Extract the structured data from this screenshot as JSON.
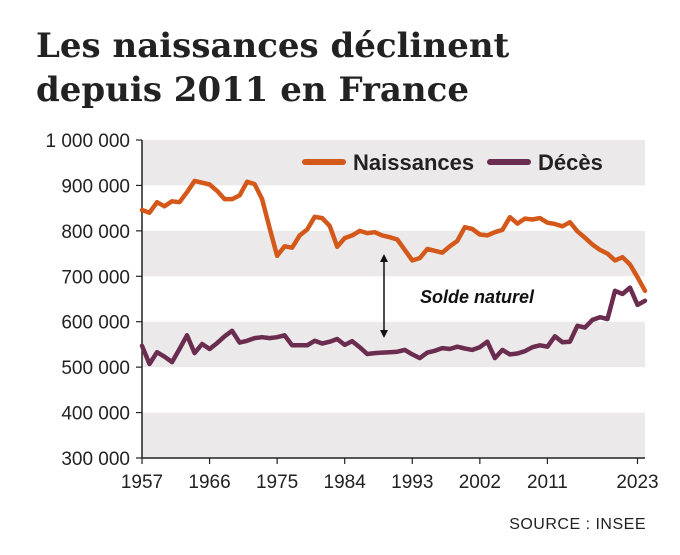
{
  "header": {
    "title_line1": "Les naissances déclinent",
    "title_line2": "depuis 2011 en France"
  },
  "source": "SOURCE : INSEE",
  "colors": {
    "naissances": "#d4581a",
    "deces": "#6b2d4f",
    "band": "#ece9ea",
    "axis": "#222222"
  },
  "chart_data": {
    "type": "line",
    "title": "Les naissances déclinent depuis 2011 en France",
    "xlabel": "",
    "ylabel": "",
    "xlim": [
      1957,
      2024
    ],
    "ylim": [
      300000,
      1000000
    ],
    "y_ticks": [
      300000,
      400000,
      500000,
      600000,
      700000,
      800000,
      900000,
      1000000
    ],
    "y_tick_labels": [
      "300 000",
      "400 000",
      "500 000",
      "600 000",
      "700 000",
      "800 000",
      "900 000",
      "1 000 000"
    ],
    "x_ticks": [
      1957,
      1966,
      1975,
      1984,
      1993,
      2002,
      2011,
      2023
    ],
    "x_tick_labels": [
      "1957",
      "1966",
      "1975",
      "1984",
      "1993",
      "2002",
      "2011",
      "2023"
    ],
    "grid": "alternating horizontal bands",
    "legend": {
      "placement": "top-right",
      "entries": [
        "Naissances",
        "Décès"
      ]
    },
    "annotation": "Solde naturel",
    "x": [
      1957,
      1958,
      1959,
      1960,
      1961,
      1962,
      1963,
      1964,
      1965,
      1966,
      1967,
      1968,
      1969,
      1970,
      1971,
      1972,
      1973,
      1974,
      1975,
      1976,
      1977,
      1978,
      1979,
      1980,
      1981,
      1982,
      1983,
      1984,
      1985,
      1986,
      1987,
      1988,
      1989,
      1990,
      1991,
      1992,
      1993,
      1994,
      1995,
      1996,
      1997,
      1998,
      1999,
      2000,
      2001,
      2002,
      2003,
      2004,
      2005,
      2006,
      2007,
      2008,
      2009,
      2010,
      2011,
      2012,
      2013,
      2014,
      2015,
      2016,
      2017,
      2018,
      2019,
      2020,
      2021,
      2022,
      2023,
      2024
    ],
    "series": [
      {
        "name": "Naissances",
        "values": [
          846000,
          840000,
          863000,
          854000,
          865000,
          863000,
          885000,
          910000,
          906000,
          902000,
          888000,
          870000,
          870000,
          878000,
          908000,
          903000,
          870000,
          806000,
          745000,
          766000,
          763000,
          790000,
          803000,
          831000,
          828000,
          811000,
          765000,
          784000,
          790000,
          800000,
          795000,
          797000,
          790000,
          786000,
          781000,
          758000,
          735000,
          740000,
          760000,
          756000,
          752000,
          766000,
          778000,
          808000,
          804000,
          792000,
          790000,
          797000,
          802000,
          830000,
          816000,
          827000,
          825000,
          828000,
          818000,
          815000,
          810000,
          819000,
          799000,
          785000,
          770000,
          758000,
          750000,
          735000,
          742000,
          726000,
          698000,
          668000
        ]
      },
      {
        "name": "Décès",
        "values": [
          547000,
          507000,
          533000,
          523000,
          511000,
          540000,
          570000,
          531000,
          551000,
          540000,
          553000,
          568000,
          580000,
          554000,
          558000,
          564000,
          566000,
          564000,
          566000,
          570000,
          548000,
          548000,
          548000,
          558000,
          552000,
          556000,
          562000,
          549000,
          557000,
          544000,
          529000,
          531000,
          532000,
          533000,
          534000,
          538000,
          528000,
          520000,
          532000,
          536000,
          542000,
          540000,
          545000,
          541000,
          538000,
          544000,
          556000,
          520000,
          538000,
          528000,
          530000,
          535000,
          544000,
          548000,
          545000,
          568000,
          555000,
          556000,
          591000,
          587000,
          604000,
          610000,
          606000,
          668000,
          661000,
          675000,
          637000,
          646000
        ]
      }
    ]
  }
}
